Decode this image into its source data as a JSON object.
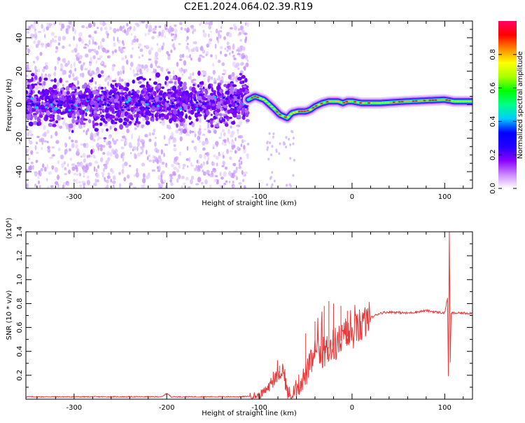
{
  "title": "C2E1.2024.064.02.39.R19",
  "chart_data": [
    {
      "type": "heatmap",
      "title": "",
      "xlabel": "Height of straight line (km)",
      "ylabel": "Frequency (Hz)",
      "xlim": [
        -352,
        130
      ],
      "ylim": [
        -50,
        50
      ],
      "xticks": [
        -300,
        -200,
        -100,
        0,
        100
      ],
      "yticks": [
        -40,
        -20,
        0,
        20,
        40
      ],
      "colorbar": {
        "label": "Normalized spectral amplitude",
        "range": [
          0,
          1
        ],
        "ticks": [
          "0.0",
          "0.2",
          "0.4",
          "0.6",
          "0.8"
        ],
        "colors": [
          "#ffffff",
          "#cc88ff",
          "#8800ff",
          "#2200ff",
          "#0000ff",
          "#00ccff",
          "#00ff88",
          "#00ff00",
          "#aaff00",
          "#ffff00",
          "#ff8800",
          "#ff0000",
          "#ff0066"
        ]
      },
      "noise_region_x": [
        -352,
        -112
      ],
      "ridge": {
        "x": [
          -352,
          -300,
          -250,
          -200,
          -150,
          -112,
          -105,
          -95,
          -85,
          -78,
          -70,
          -65,
          -58,
          -50,
          -45,
          -40,
          -32,
          -25,
          -15,
          -10,
          -5,
          0,
          10,
          30,
          60,
          100,
          110,
          130
        ],
        "y": [
          0,
          1,
          0,
          2,
          1,
          3,
          5,
          3,
          -2,
          -6,
          -8,
          -5,
          -4,
          -4,
          -3,
          -1,
          1,
          2,
          2,
          1,
          2,
          2,
          1,
          1,
          2,
          3,
          2,
          2
        ]
      }
    },
    {
      "type": "line",
      "title": "",
      "xlabel": "Height of straight line (km)",
      "ylabel": "SNR (10 * v/v)",
      "y_multiplier": "(x10⁴)",
      "xlim": [
        -352,
        130
      ],
      "ylim": [
        0,
        1.4
      ],
      "xticks": [
        -300,
        -200,
        -100,
        0,
        100
      ],
      "yticks": [
        0.2,
        0.4,
        0.6,
        0.8,
        1.0,
        1.2,
        1.4
      ],
      "color": "#e8393a",
      "series": [
        {
          "x": [
            -352,
            -300,
            -250,
            -205,
            -200,
            -195,
            -150,
            -120,
            -100,
            -90,
            -85,
            -80,
            -75,
            -72,
            -70,
            -65,
            -60,
            -55,
            -50,
            -45,
            -40,
            -30,
            -20,
            -10,
            0,
            10,
            20,
            30,
            40,
            60,
            80,
            100,
            103,
            104,
            105,
            106,
            107,
            110,
            130
          ],
          "y": [
            0.02,
            0.02,
            0.02,
            0.02,
            0.05,
            0.02,
            0.02,
            0.02,
            0.03,
            0.1,
            0.15,
            0.2,
            0.25,
            0.15,
            0.05,
            0.02,
            0.08,
            0.15,
            0.2,
            0.3,
            0.35,
            0.4,
            0.45,
            0.5,
            0.55,
            0.62,
            0.68,
            0.72,
            0.73,
            0.72,
            0.74,
            0.72,
            0.85,
            0.2,
            1.4,
            0.3,
            0.72,
            0.72,
            0.72
          ],
          "spikes": [
            {
              "x": -78,
              "y": 0.28
            },
            {
              "x": -50,
              "y": 0.55
            },
            {
              "x": -40,
              "y": 0.65
            },
            {
              "x": -30,
              "y": 0.78
            },
            {
              "x": -25,
              "y": 0.82
            },
            {
              "x": -20,
              "y": 0.8
            },
            {
              "x": -12,
              "y": 0.78
            },
            {
              "x": -5,
              "y": 0.74
            },
            {
              "x": 5,
              "y": 0.7
            }
          ]
        }
      ]
    }
  ]
}
